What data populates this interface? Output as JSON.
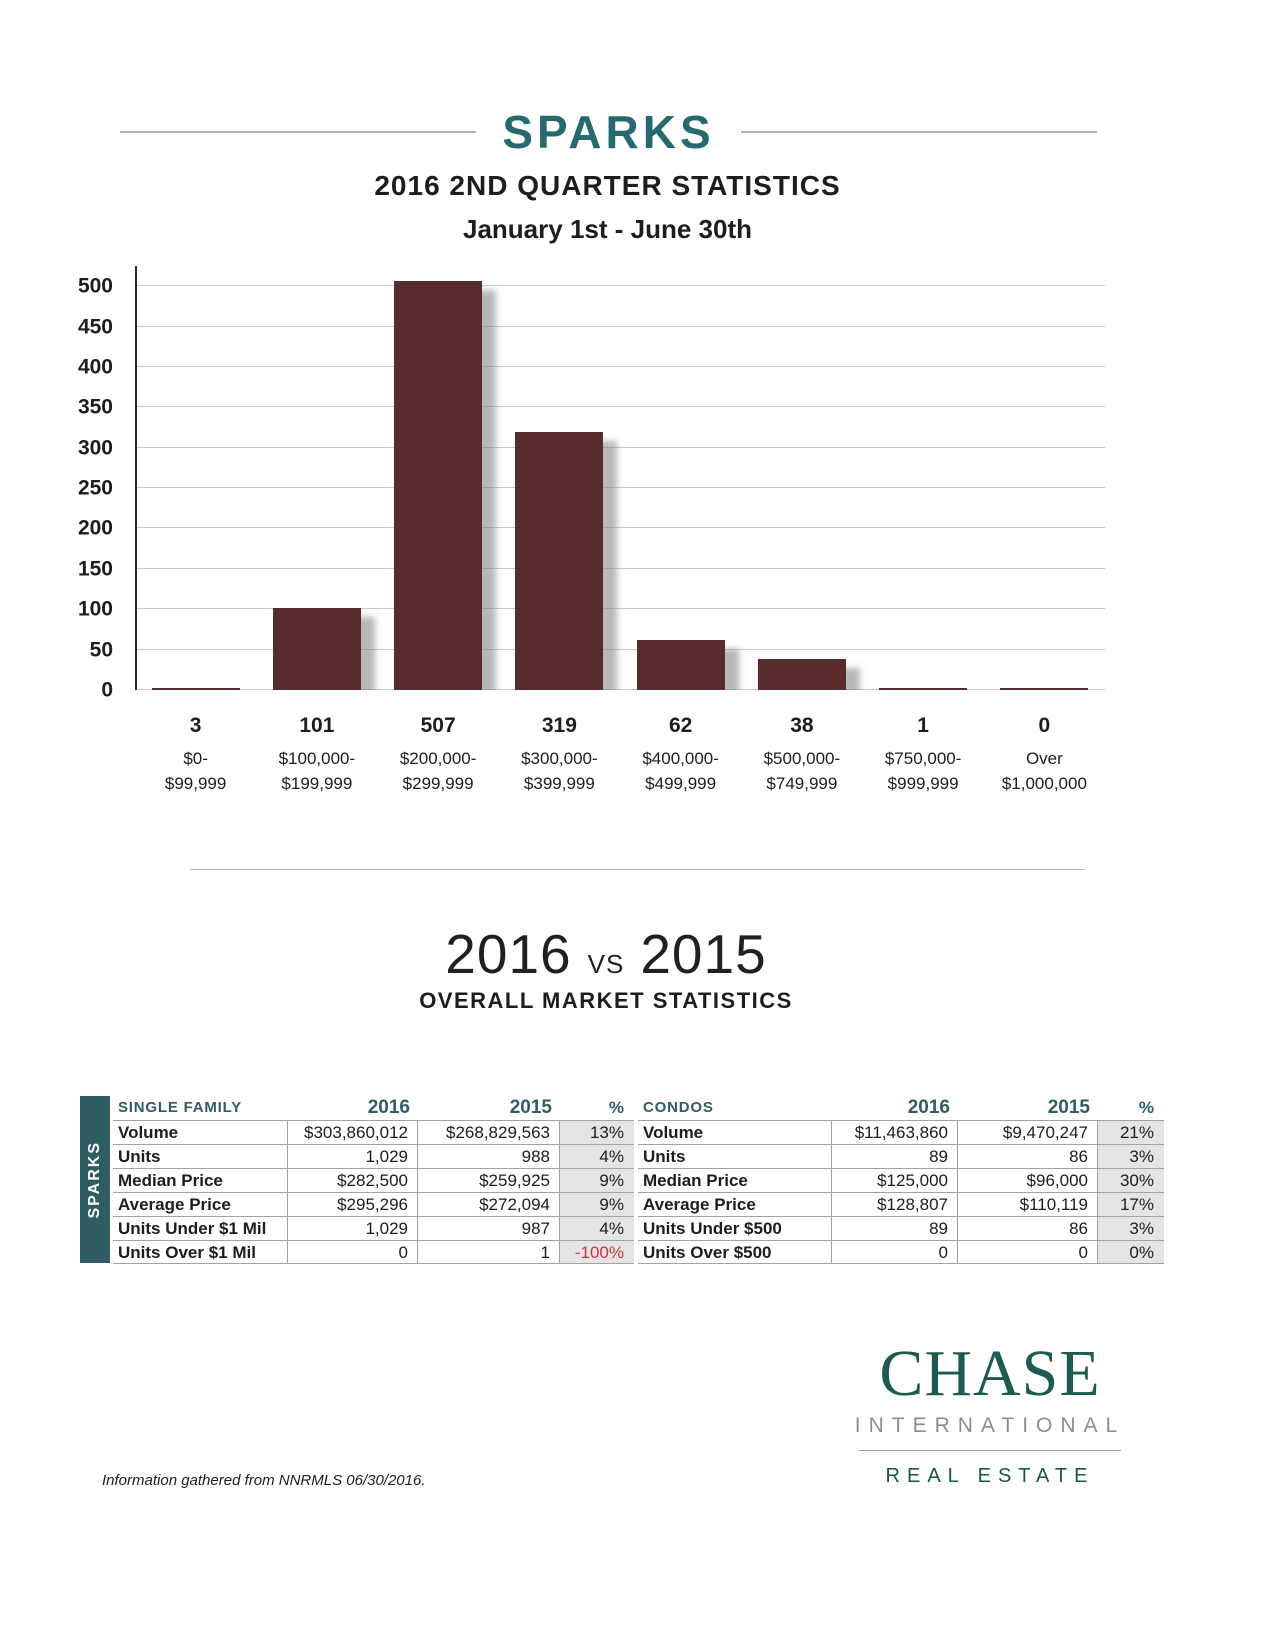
{
  "page": {
    "title": "SPARKS",
    "subtitle1": "2016 2ND QUARTER STATISTICS",
    "subtitle2": "January 1st - June 30th",
    "footer_note": "Information gathered from NNRMLS 06/30/2016."
  },
  "chart_data": {
    "type": "bar",
    "title": "2016 2nd Quarter Sold Units by Price Range",
    "categories": [
      "$0-$99,999",
      "$100,000-$199,999",
      "$200,000-$299,999",
      "$300,000-$399,999",
      "$400,000-$499,999",
      "$500,000-$749,999",
      "$750,000-$999,999",
      "Over $1,000,000"
    ],
    "category_lines": [
      [
        "$0-",
        "$99,999"
      ],
      [
        "$100,000-",
        "$199,999"
      ],
      [
        "$200,000-",
        "$299,999"
      ],
      [
        "$300,000-",
        "$399,999"
      ],
      [
        "$400,000-",
        "$499,999"
      ],
      [
        "$500,000-",
        "$749,999"
      ],
      [
        "$750,000-",
        "$999,999"
      ],
      [
        "Over",
        "$1,000,000"
      ]
    ],
    "values": [
      3,
      101,
      507,
      319,
      62,
      38,
      1,
      0
    ],
    "value_labels": [
      "3",
      "101",
      "507",
      "319",
      "62",
      "38",
      "1",
      "0"
    ],
    "xlabel": "",
    "ylabel": "",
    "ylim": [
      0,
      525
    ],
    "ytick_max": 500,
    "ytick_step": 50,
    "grid": true,
    "legend": "none",
    "bar_color": "#582b2c"
  },
  "comparison": {
    "heading_2016": "2016",
    "vs_label": "VS",
    "heading_2015": "2015",
    "subheading": "OVERALL MARKET STATISTICS",
    "region_label": "SPARKS",
    "tables": [
      {
        "name": "SINGLE FAMILY",
        "col_2016": "2016",
        "col_2015": "2015",
        "col_pct": "%",
        "rows": [
          {
            "label": "Volume",
            "v2016": "$303,860,012",
            "v2015": "$268,829,563",
            "pct": "13%",
            "negative": false
          },
          {
            "label": "Units",
            "v2016": "1,029",
            "v2015": "988",
            "pct": "4%",
            "negative": false
          },
          {
            "label": "Median Price",
            "v2016": "$282,500",
            "v2015": "$259,925",
            "pct": "9%",
            "negative": false
          },
          {
            "label": "Average Price",
            "v2016": "$295,296",
            "v2015": "$272,094",
            "pct": "9%",
            "negative": false
          },
          {
            "label": "Units Under $1 Mil",
            "v2016": "1,029",
            "v2015": "987",
            "pct": "4%",
            "negative": false
          },
          {
            "label": "Units Over $1 Mil",
            "v2016": "0",
            "v2015": "1",
            "pct": "-100%",
            "negative": true
          }
        ]
      },
      {
        "name": "CONDOS",
        "col_2016": "2016",
        "col_2015": "2015",
        "col_pct": "%",
        "rows": [
          {
            "label": "Volume",
            "v2016": "$11,463,860",
            "v2015": "$9,470,247",
            "pct": "21%",
            "negative": false
          },
          {
            "label": "Units",
            "v2016": "89",
            "v2015": "86",
            "pct": "3%",
            "negative": false
          },
          {
            "label": "Median Price",
            "v2016": "$125,000",
            "v2015": "$96,000",
            "pct": "30%",
            "negative": false
          },
          {
            "label": "Average Price",
            "v2016": "$128,807",
            "v2015": "$110,119",
            "pct": "17%",
            "negative": false
          },
          {
            "label": "Units Under $500",
            "v2016": "89",
            "v2015": "86",
            "pct": "3%",
            "negative": false
          },
          {
            "label": "Units Over $500",
            "v2016": "0",
            "v2015": "0",
            "pct": "0%",
            "negative": false
          }
        ]
      }
    ]
  },
  "logo": {
    "name": "CHASE",
    "line2": "INTERNATIONAL",
    "line3": "REAL ESTATE"
  },
  "colors": {
    "title_teal": "#266a6f",
    "table_teal": "#2f5d63",
    "chase_teal": "#1c5a52",
    "bar_maroon": "#582b2c",
    "negative_red": "#c5393c",
    "pct_column_bg": "#e4e4e4",
    "gridline_gray": "#c9c9c9"
  }
}
